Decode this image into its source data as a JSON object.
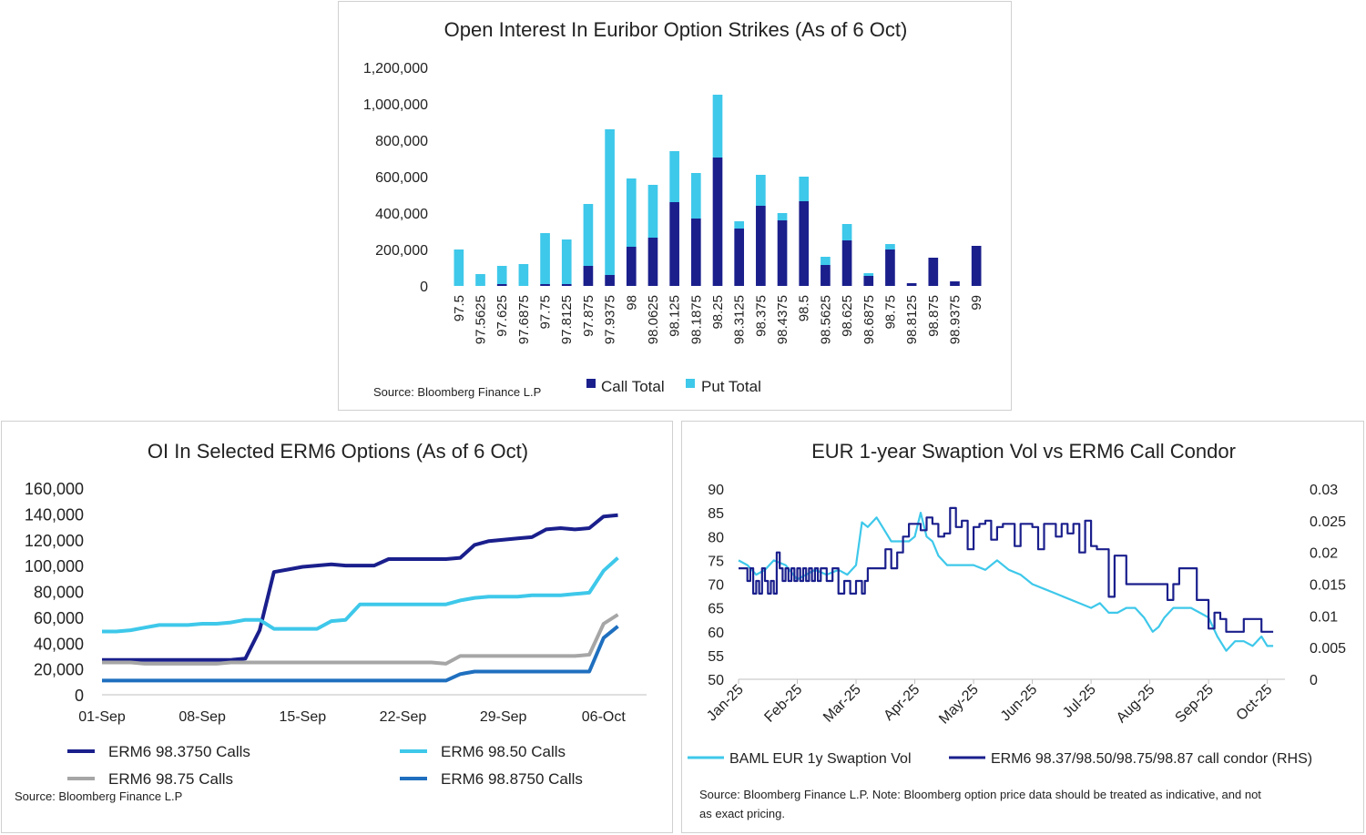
{
  "charts": [
    {
      "id": "oi-strikes",
      "type": "bar",
      "title": "Open Interest In Euribor Option Strikes (As of 6 Oct)",
      "categories": [
        "97.5",
        "97.5625",
        "97.625",
        "97.6875",
        "97.75",
        "97.8125",
        "97.875",
        "97.9375",
        "98",
        "98.0625",
        "98.125",
        "98.1875",
        "98.25",
        "98.3125",
        "98.375",
        "98.4375",
        "98.5",
        "98.5625",
        "98.625",
        "98.6875",
        "98.75",
        "98.8125",
        "98.875",
        "98.9375",
        "99"
      ],
      "ylim": [
        0,
        1200000
      ],
      "yticks": [
        0,
        200000,
        400000,
        600000,
        800000,
        1000000,
        1200000
      ],
      "ytick_labels": [
        "0",
        "200,000",
        "400,000",
        "600,000",
        "800,000",
        "1,000,000",
        "1,200,000"
      ],
      "stacked": true,
      "series": [
        {
          "name": "Call Total",
          "color": "#1a1f8c",
          "values": [
            0,
            0,
            10000,
            0,
            10000,
            10000,
            110000,
            60000,
            215000,
            265000,
            460000,
            370000,
            705000,
            315000,
            440000,
            360000,
            465000,
            115000,
            250000,
            55000,
            200000,
            15000,
            155000,
            25000,
            220000
          ]
        },
        {
          "name": "Put Total",
          "color": "#3ec8ea",
          "values": [
            200000,
            65000,
            100000,
            120000,
            280000,
            245000,
            340000,
            800000,
            375000,
            290000,
            280000,
            250000,
            345000,
            40000,
            170000,
            40000,
            135000,
            45000,
            90000,
            15000,
            30000,
            0,
            0,
            0,
            0
          ]
        }
      ],
      "source": "Source: Bloomberg Finance L.P",
      "legend_position": "bottom"
    },
    {
      "id": "oi-erm6",
      "type": "line",
      "title": "OI In Selected ERM6 Options (As of 6 Oct)",
      "x": [
        1,
        2,
        3,
        4,
        5,
        6,
        7,
        8,
        9,
        10,
        11,
        12,
        13,
        14,
        15,
        16,
        17,
        18,
        19,
        20,
        21,
        22,
        23,
        24,
        25,
        26,
        27,
        28,
        29,
        30,
        31,
        32,
        33,
        34,
        35,
        36,
        37
      ],
      "xticks": [
        1,
        8,
        15,
        22,
        29,
        36
      ],
      "xtick_labels": [
        "01-Sep",
        "08-Sep",
        "15-Sep",
        "22-Sep",
        "29-Sep",
        "06-Oct"
      ],
      "xlim": [
        1,
        39
      ],
      "ylim": [
        0,
        160000
      ],
      "yticks": [
        0,
        20000,
        40000,
        60000,
        80000,
        100000,
        120000,
        140000,
        160000
      ],
      "ytick_labels": [
        "0",
        "20,000",
        "40,000",
        "60,000",
        "80,000",
        "100,000",
        "120,000",
        "140,000",
        "160,000"
      ],
      "series": [
        {
          "name": "ERM6 98.3750 Calls",
          "color": "#1a1f8c",
          "values": [
            27000,
            27000,
            27000,
            27000,
            27000,
            27000,
            27000,
            27000,
            27000,
            27000,
            28000,
            50000,
            95000,
            97000,
            99000,
            100000,
            101000,
            100000,
            100000,
            100000,
            105000,
            105000,
            105000,
            105000,
            105000,
            106000,
            116000,
            119000,
            120000,
            121000,
            122000,
            128000,
            129000,
            128000,
            129000,
            138000,
            139000
          ]
        },
        {
          "name": "ERM6 98.50 Calls",
          "color": "#3ec8ea",
          "values": [
            49000,
            49000,
            50000,
            52000,
            54000,
            54000,
            54000,
            55000,
            55000,
            56000,
            58000,
            58000,
            51000,
            51000,
            51000,
            51000,
            57000,
            58000,
            70000,
            70000,
            70000,
            70000,
            70000,
            70000,
            70000,
            73000,
            75000,
            76000,
            76000,
            76000,
            77000,
            77000,
            77000,
            78000,
            79000,
            96000,
            106000
          ]
        },
        {
          "name": "ERM6 98.75 Calls",
          "color": "#a6a6a6",
          "values": [
            25000,
            25000,
            25000,
            24000,
            24000,
            24000,
            24000,
            24000,
            24000,
            25000,
            25000,
            25000,
            25000,
            25000,
            25000,
            25000,
            25000,
            25000,
            25000,
            25000,
            25000,
            25000,
            25000,
            25000,
            24000,
            30000,
            30000,
            30000,
            30000,
            30000,
            30000,
            30000,
            30000,
            30000,
            31000,
            55000,
            62000
          ]
        },
        {
          "name": "ERM6 98.8750 Calls",
          "color": "#1f6fbf",
          "values": [
            11000,
            11000,
            11000,
            11000,
            11000,
            11000,
            11000,
            11000,
            11000,
            11000,
            11000,
            11000,
            11000,
            11000,
            11000,
            11000,
            11000,
            11000,
            11000,
            11000,
            11000,
            11000,
            11000,
            11000,
            11000,
            16000,
            18000,
            18000,
            18000,
            18000,
            18000,
            18000,
            18000,
            18000,
            18000,
            44000,
            53000
          ]
        }
      ],
      "source": "Source: Bloomberg Finance L.P",
      "legend_position": "bottom"
    },
    {
      "id": "swaption-vs-condor",
      "type": "line",
      "title": "EUR 1-year Swaption Vol vs ERM6 Call Condor",
      "xtick_labels": [
        "Jan-25",
        "Feb-25",
        "Mar-25",
        "Apr-25",
        "May-25",
        "Jun-25",
        "Jul-25",
        "Aug-25",
        "Sep-25",
        "Oct-25"
      ],
      "xlim": [
        0,
        9.3
      ],
      "ylim_left": [
        50,
        90
      ],
      "yticks_left": [
        50,
        55,
        60,
        65,
        70,
        75,
        80,
        85,
        90
      ],
      "ytick_labels_left": [
        "50",
        "55",
        "60",
        "65",
        "70",
        "75",
        "80",
        "85",
        "90"
      ],
      "ylim_right": [
        0,
        0.03
      ],
      "yticks_right": [
        0,
        0.005,
        0.01,
        0.015,
        0.02,
        0.025,
        0.03
      ],
      "ytick_labels_right": [
        "0",
        "0.005",
        "0.01",
        "0.015",
        "0.02",
        "0.025",
        "0.03"
      ],
      "series": [
        {
          "name": "BAML EUR 1y Swaption Vol",
          "axis": "left",
          "color": "#3ec8ea",
          "x": [
            0,
            0.15,
            0.3,
            0.45,
            0.6,
            0.8,
            1.0,
            1.15,
            1.3,
            1.5,
            1.7,
            1.85,
            2.0,
            2.1,
            2.2,
            2.35,
            2.45,
            2.6,
            2.75,
            2.9,
            3.0,
            3.1,
            3.2,
            3.3,
            3.4,
            3.55,
            3.7,
            3.85,
            4.0,
            4.2,
            4.4,
            4.6,
            4.8,
            5.0,
            5.2,
            5.4,
            5.6,
            5.8,
            6.0,
            6.15,
            6.3,
            6.45,
            6.6,
            6.75,
            6.9,
            7.05,
            7.15,
            7.25,
            7.4,
            7.55,
            7.7,
            7.85,
            8.0,
            8.15,
            8.3,
            8.45,
            8.6,
            8.75,
            8.9,
            9.0,
            9.1
          ],
          "values": [
            75,
            74,
            72,
            73,
            75,
            74,
            71,
            72,
            73,
            72,
            73,
            72,
            74,
            83,
            82,
            84,
            82,
            79,
            79,
            79,
            80,
            85,
            80,
            79,
            76,
            74,
            74,
            74,
            74,
            73,
            75,
            73,
            72,
            70,
            69,
            68,
            67,
            66,
            65,
            66,
            64,
            64,
            65,
            65,
            63,
            60,
            61,
            63,
            65,
            65,
            65,
            64,
            63,
            59,
            56,
            58,
            58,
            57,
            59,
            57,
            57
          ]
        },
        {
          "name": "ERM6 98.37/98.50/98.75/98.87 call condor (RHS)",
          "axis": "right",
          "color": "#1a1f8c",
          "x": [
            0,
            0.1,
            0.15,
            0.2,
            0.25,
            0.3,
            0.35,
            0.4,
            0.45,
            0.5,
            0.55,
            0.6,
            0.65,
            0.7,
            0.75,
            0.8,
            0.85,
            0.9,
            0.95,
            1.0,
            1.05,
            1.1,
            1.15,
            1.2,
            1.25,
            1.3,
            1.35,
            1.4,
            1.5,
            1.6,
            1.7,
            1.8,
            1.9,
            2.0,
            2.05,
            2.1,
            2.15,
            2.2,
            2.3,
            2.4,
            2.5,
            2.6,
            2.7,
            2.8,
            2.9,
            3.0,
            3.1,
            3.2,
            3.3,
            3.4,
            3.5,
            3.6,
            3.7,
            3.8,
            3.9,
            4.0,
            4.1,
            4.2,
            4.3,
            4.4,
            4.5,
            4.6,
            4.7,
            4.8,
            4.9,
            5.0,
            5.1,
            5.2,
            5.3,
            5.4,
            5.5,
            5.6,
            5.7,
            5.8,
            5.9,
            6.0,
            6.1,
            6.2,
            6.3,
            6.4,
            6.5,
            6.6,
            6.7,
            6.8,
            6.9,
            7.0,
            7.1,
            7.2,
            7.3,
            7.4,
            7.5,
            7.6,
            7.7,
            7.8,
            7.9,
            8.0,
            8.1,
            8.2,
            8.3,
            8.4,
            8.5,
            8.6,
            8.7,
            8.8,
            8.9,
            9.0,
            9.1
          ],
          "values": [
            0.0175,
            0.0175,
            0.0155,
            0.0175,
            0.0135,
            0.0155,
            0.0135,
            0.0175,
            0.0155,
            0.0135,
            0.0155,
            0.0135,
            0.02,
            0.0175,
            0.0155,
            0.0175,
            0.0155,
            0.0175,
            0.0155,
            0.0175,
            0.0155,
            0.0175,
            0.0155,
            0.0175,
            0.0155,
            0.0175,
            0.0155,
            0.0175,
            0.0155,
            0.0175,
            0.0135,
            0.0155,
            0.0135,
            0.0155,
            0.0155,
            0.0135,
            0.0155,
            0.0175,
            0.0175,
            0.0175,
            0.0205,
            0.0175,
            0.02,
            0.0225,
            0.0245,
            0.0245,
            0.0235,
            0.0255,
            0.0245,
            0.0225,
            0.023,
            0.027,
            0.024,
            0.025,
            0.0205,
            0.024,
            0.0245,
            0.025,
            0.022,
            0.024,
            0.0245,
            0.0245,
            0.021,
            0.0245,
            0.0245,
            0.024,
            0.0205,
            0.0245,
            0.0245,
            0.0225,
            0.0245,
            0.023,
            0.0245,
            0.02,
            0.025,
            0.021,
            0.0205,
            0.0205,
            0.013,
            0.0195,
            0.0195,
            0.015,
            0.015,
            0.015,
            0.015,
            0.015,
            0.015,
            0.015,
            0.0125,
            0.015,
            0.0175,
            0.0175,
            0.0175,
            0.0125,
            0.0125,
            0.008,
            0.0105,
            0.0095,
            0.0075,
            0.0075,
            0.0075,
            0.0095,
            0.0095,
            0.0095,
            0.0075,
            0.0075,
            0.0075
          ]
        }
      ],
      "source": "Source: Bloomberg Finance L.P. Note: Bloomberg option price data should be treated as indicative, and not as exact pricing.",
      "legend_position": "bottom"
    }
  ],
  "page": {
    "p1_source": "Source: Bloomberg Finance L.P",
    "p2_source": "Source: Bloomberg Finance L.P",
    "p3_source_line1": "Source: Bloomberg Finance L.P. Note: Bloomberg option price data should be treated as indicative, and not",
    "p3_source_line2": "as exact pricing."
  }
}
